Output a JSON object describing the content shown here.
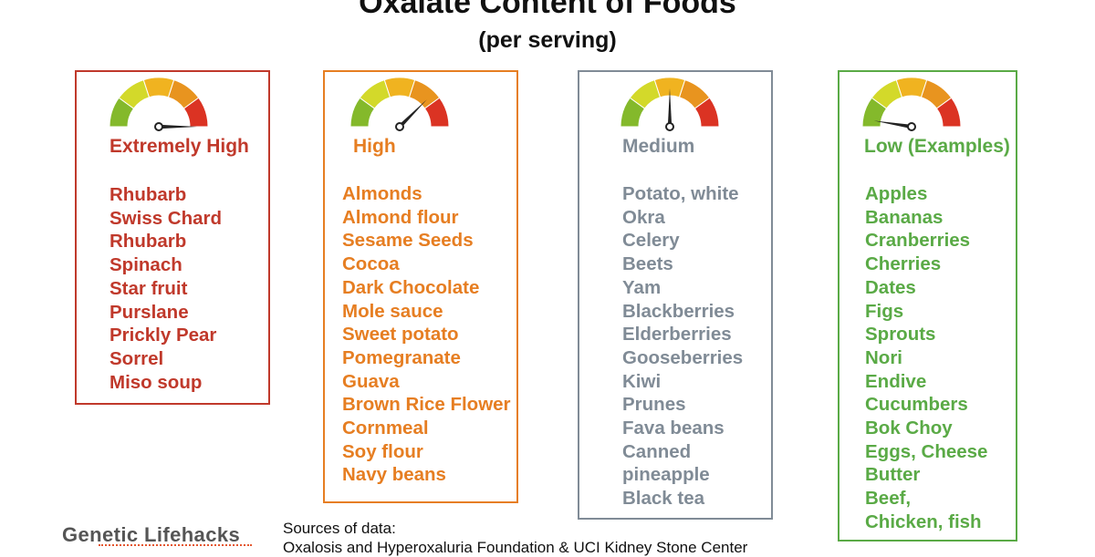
{
  "header": {
    "title": "Oxalate Content of Foods",
    "subtitle": "(per serving)"
  },
  "gauge_colors": [
    "#84b92b",
    "#d3d92a",
    "#f0b320",
    "#e8941f",
    "#db3323"
  ],
  "categories": [
    {
      "label": "Extremely High",
      "color": "#c0392b",
      "gauge_level": 1.0,
      "foods": [
        "Rhubarb",
        "Swiss Chard",
        "Rhubarb",
        "Spinach",
        "Star fruit",
        "Purslane",
        "Prickly Pear",
        "Sorrel",
        "Miso soup"
      ]
    },
    {
      "label": "High",
      "color": "#e67e22",
      "gauge_level": 0.75,
      "foods": [
        "Almonds",
        "Almond flour",
        "Sesame Seeds",
        "Cocoa",
        "Dark Chocolate",
        "Mole sauce",
        "Sweet potato",
        "Pomegranate",
        "Guava",
        "Brown Rice Flower",
        "Cornmeal",
        "Soy flour",
        "Navy beans"
      ]
    },
    {
      "label": "Medium",
      "color": "#808b96",
      "gauge_level": 0.5,
      "foods": [
        "Potato, white",
        "Okra",
        "Celery",
        "Beets",
        "Yam",
        "Blackberries",
        "Elderberries",
        "Gooseberries",
        "Kiwi",
        "Prunes",
        "Fava beans",
        "Canned",
        "pineapple",
        "Black tea"
      ]
    },
    {
      "label": "Low (Examples)",
      "color": "#5aaa46",
      "gauge_level": 0.05,
      "foods": [
        "Apples",
        "Bananas",
        "Cranberries",
        "Cherries",
        "Dates",
        "Figs",
        "Sprouts",
        "Nori",
        "Endive",
        "Cucumbers",
        "Bok Choy",
        "Eggs, Cheese",
        "Butter",
        "Beef,",
        "Chicken, fish"
      ]
    }
  ],
  "footer": {
    "brand": "Genetic Lifehacks",
    "sources_label": "Sources of data:",
    "sources_text": "Oxalosis and Hyperoxaluria Foundation & UCI Kidney Stone Center"
  }
}
